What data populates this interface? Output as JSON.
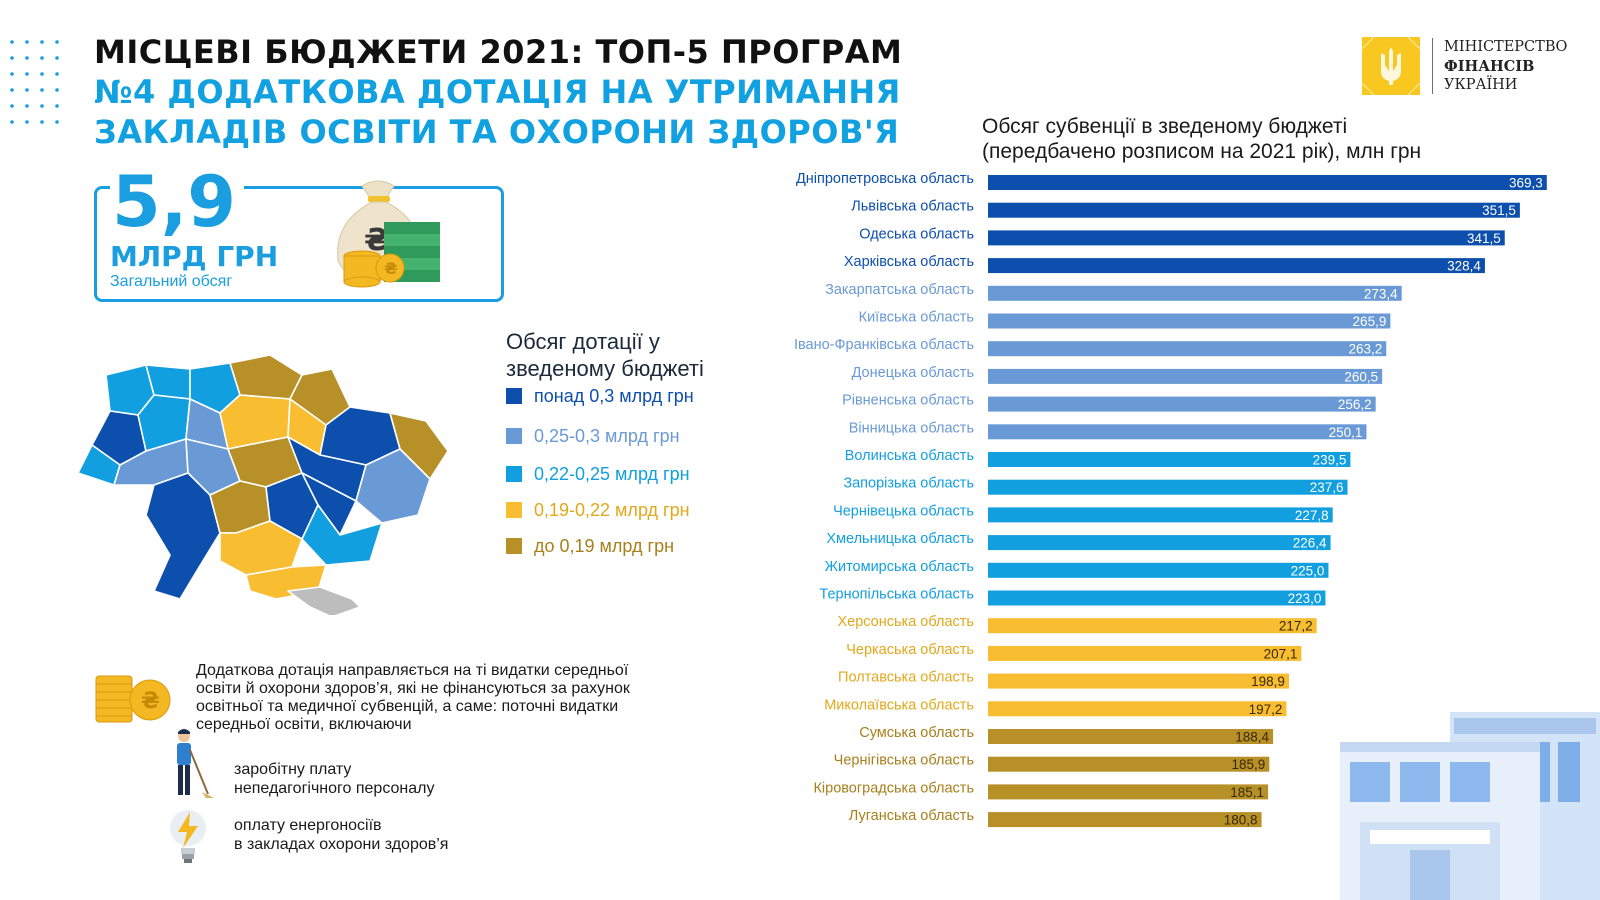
{
  "header": {
    "line1": "МІСЦЕВІ БЮДЖЕТИ 2021: ТОП-5 ПРОГРАМ",
    "line2": "№4 ДОДАТКОВА ДОТАЦІЯ НА УТРИМАННЯ",
    "line3": "ЗАКЛАДІВ ОСВІТИ ТА ОХОРОНИ ЗДОРОВ'Я"
  },
  "logo": {
    "line1": "МІНІСТЕРСТВО",
    "line2": "ФІНАНСІВ",
    "line3": "УКРАЇНИ"
  },
  "total": {
    "value": "5,9",
    "unit": "МЛРД ГРН",
    "label": "Загальний обсяг"
  },
  "legend": {
    "title_line1": "Обсяг дотації у",
    "title_line2": "зведеному бюджеті",
    "items": [
      {
        "label": "понад 0,3 млрд грн",
        "color": "#0d4fac"
      },
      {
        "label": "0,25-0,3 млрд грн",
        "color": "#6a9ad6"
      },
      {
        "label": "0,22-0,25 млрд грн",
        "color": "#129fe0"
      },
      {
        "label": "0,19-0,22 млрд грн",
        "color": "#f8bd30"
      },
      {
        "label": "до 0,19 млрд грн",
        "color": "#b89028"
      }
    ]
  },
  "note": {
    "line1": "Додаткова дотація направляється на ті видатки середньої",
    "line2": "освіти й охорони здоров’я, які не фінансуються за рахунок",
    "line3": "освітньої та медичної субвенцій, а саме: поточні видатки",
    "line4": "середньої освіти, включаючи",
    "bullet1_line1": "заробітну плату",
    "bullet1_line2": "непедагогічного персоналу",
    "bullet2_line1": "оплату енергоносіїв",
    "bullet2_line2": "в закладах охорони здоров’я"
  },
  "chart_data": {
    "type": "bar",
    "orientation": "horizontal",
    "title_line1": "Обсяг субвенції в зведеному бюджеті",
    "title_line2": "(передбачено розписом на 2021 рік), млн грн",
    "categories": [
      "Дніпропетровська область",
      "Львівська область",
      "Одеська область",
      "Харківська область",
      "Закарпатська область",
      "Київська область",
      "Івано-Франківська область",
      "Донецька область",
      "Рівненська область",
      "Вінницька область",
      "Волинська область",
      "Запорізька область",
      "Чернівецька область",
      "Хмельницька область",
      "Житомирська область",
      "Тернопільська область",
      "Херсонська область",
      "Черкаська область",
      "Полтавська область",
      "Миколаївська область",
      "Сумська область",
      "Чернігівська область",
      "Кіровоградська область",
      "Луганська область"
    ],
    "values": [
      369.3,
      351.5,
      341.5,
      328.4,
      273.4,
      265.9,
      263.2,
      260.5,
      256.2,
      250.1,
      239.5,
      237.6,
      227.8,
      226.4,
      225.0,
      223.0,
      217.2,
      207.1,
      198.9,
      197.2,
      188.4,
      185.9,
      185.1,
      180.8
    ],
    "value_labels": [
      "369,3",
      "351,5",
      "341,5",
      "328,4",
      "273,4",
      "265,9",
      "263,2",
      "260,5",
      "256,2",
      "250,1",
      "239,5",
      "237,6",
      "227,8",
      "226,4",
      "225,0",
      "223,0",
      "217,2",
      "207,1",
      "198,9",
      "197,2",
      "188,4",
      "185,9",
      "185,1",
      "180,8"
    ],
    "groups": [
      0,
      0,
      0,
      0,
      1,
      1,
      1,
      1,
      1,
      1,
      2,
      2,
      2,
      2,
      2,
      2,
      3,
      3,
      3,
      3,
      4,
      4,
      4,
      4
    ],
    "group_colors": [
      "#0d4fac",
      "#6a9ad6",
      "#129fe0",
      "#f8bd30",
      "#b89028"
    ],
    "label_colors": [
      "#0d4fac",
      "#6a9ad6",
      "#129fe0",
      "#e2a81c",
      "#a8801c"
    ],
    "xlim": [
      0,
      380
    ],
    "grid": false,
    "legend": "none"
  }
}
